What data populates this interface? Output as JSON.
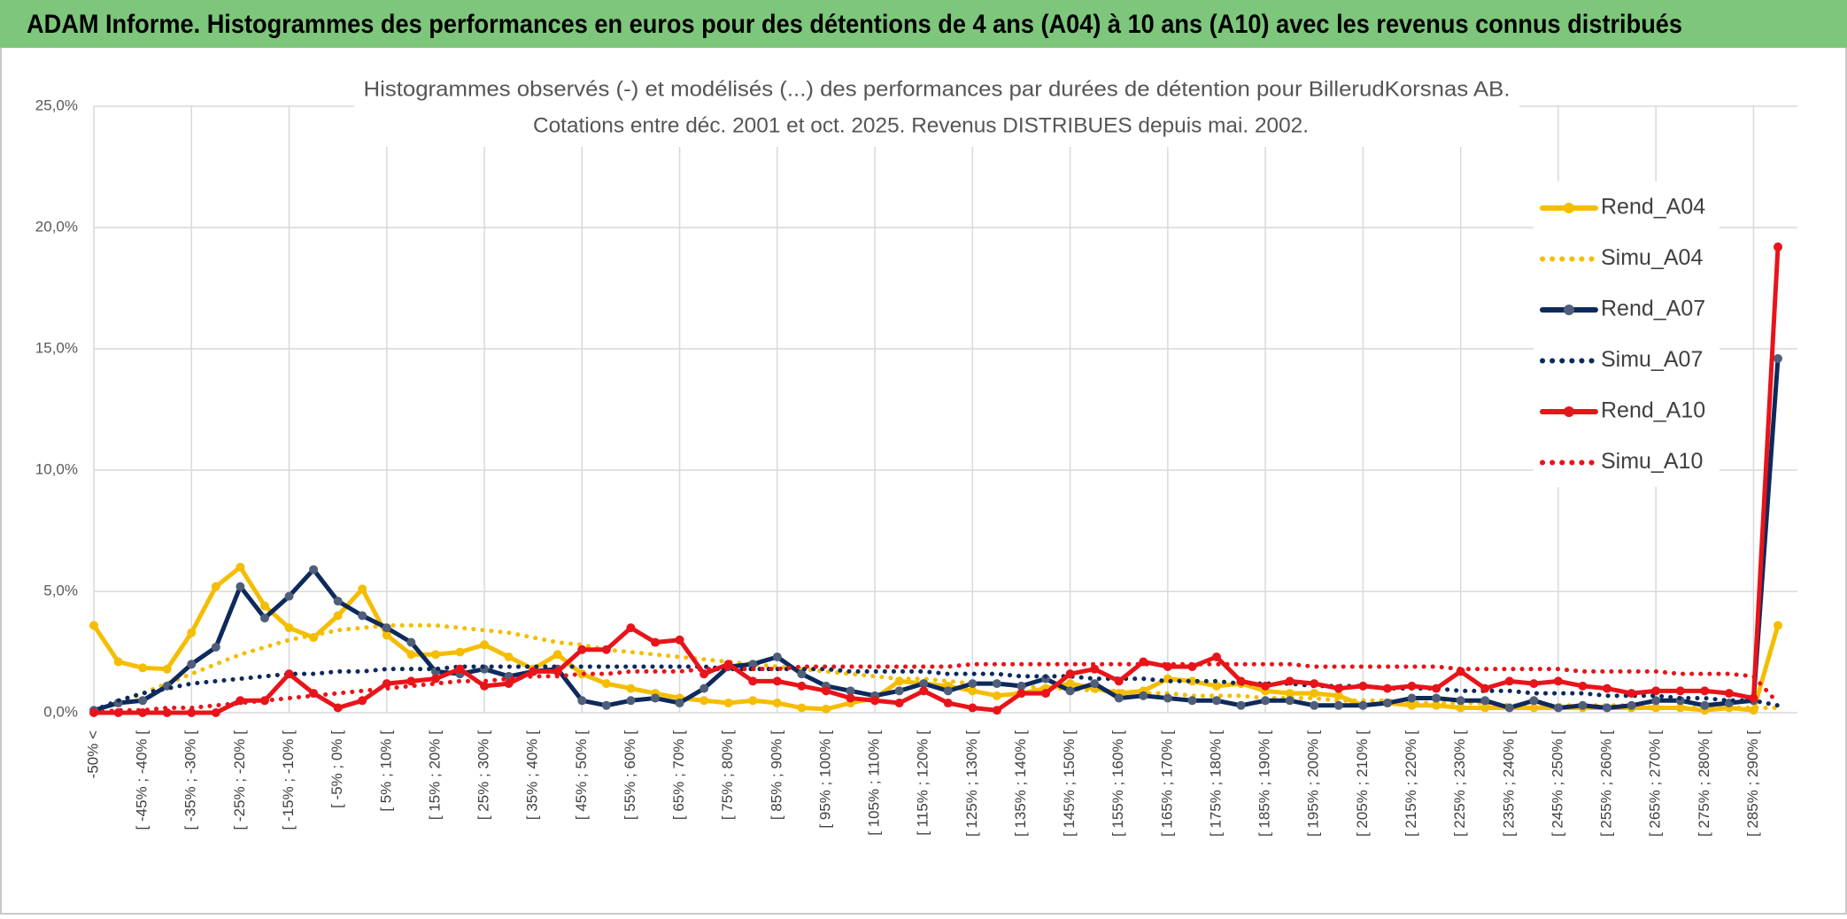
{
  "header": {
    "title": "ADAM Informe. Histogrammes des performances en euros pour des détentions de 4 ans (A04) à 10 ans (A10) avec les revenus connus distribués"
  },
  "chart_data": {
    "type": "line",
    "title": "Histogrammes observés (-) et modélisés (...) des performances par durées de détention pour BillerudKorsnas AB.",
    "subtitle": "Cotations entre déc. 2001 et oct. 2025. Revenus DISTRIBUES depuis mai. 2002.",
    "categories": [
      "-50% <",
      null,
      "[ -45% ; -40% [",
      null,
      "[ -35% ; -30% [",
      null,
      "[ -25% ; -20% [",
      null,
      "[ -15% ; -10% [",
      null,
      "[ -5% ; 0% [",
      null,
      "[ 5% ; 10% [",
      null,
      "[ 15% ; 20% [",
      null,
      "[ 25% ; 30% [",
      null,
      "[ 35% ; 40% [",
      null,
      "[ 45% ; 50% [",
      null,
      "[ 55% ; 60% [",
      null,
      "[ 65% ; 70% [",
      null,
      "[ 75% ; 80% [",
      null,
      "[ 85% ; 90% [",
      null,
      "[ 95% ; 100% [",
      null,
      "[ 105% ; 110% [",
      null,
      "[ 115% ; 120% [",
      null,
      "[ 125% ; 130% [",
      null,
      "[ 135% ; 140% [",
      null,
      "[ 145% ; 150% [",
      null,
      "[ 155% ; 160% [",
      null,
      "[ 165% ; 170% [",
      null,
      "[ 175% ; 180% [",
      null,
      "[ 185% ; 190% [",
      null,
      "[ 195% ; 200% [",
      null,
      "[ 205% ; 210% [",
      null,
      "[ 215% ; 220% [",
      null,
      "[ 225% ; 230% [",
      null,
      "[ 235% ; 240% [",
      null,
      "[ 245% ; 250% [",
      null,
      "[ 255% ; 260% [",
      null,
      "[ 265% ; 270% [",
      null,
      "[ 275% ; 280% [",
      null,
      "[ 285% ; 290% [",
      null
    ],
    "series": [
      {
        "name": "Rend_A04",
        "color": "#f5bd00",
        "style": "solid",
        "marker_color": "#f5bd00",
        "values": [
          3.6,
          2.1,
          1.85,
          1.8,
          3.3,
          5.2,
          6.0,
          4.4,
          3.5,
          3.1,
          4.0,
          5.1,
          3.2,
          2.4,
          2.4,
          2.5,
          2.8,
          2.3,
          1.8,
          2.4,
          1.6,
          1.2,
          1.0,
          0.8,
          0.6,
          0.5,
          0.4,
          0.5,
          0.4,
          0.2,
          0.15,
          0.4,
          0.6,
          1.3,
          1.2,
          1.1,
          0.9,
          0.7,
          0.8,
          1.0,
          1.2,
          1.0,
          0.8,
          0.9,
          1.4,
          1.3,
          1.1,
          1.2,
          0.9,
          0.8,
          0.8,
          0.7,
          0.3,
          0.4,
          0.3,
          0.3,
          0.2,
          0.2,
          0.2,
          0.2,
          0.2,
          0.2,
          0.2,
          0.2,
          0.2,
          0.2,
          0.1,
          0.2,
          0.1,
          3.6
        ]
      },
      {
        "name": "Simu_A04",
        "color": "#f5bd00",
        "style": "dotted",
        "values": [
          0.1,
          0.4,
          0.8,
          1.2,
          1.6,
          2.0,
          2.4,
          2.7,
          3.0,
          3.2,
          3.4,
          3.5,
          3.6,
          3.6,
          3.6,
          3.5,
          3.4,
          3.3,
          3.1,
          2.9,
          2.8,
          2.6,
          2.5,
          2.4,
          2.3,
          2.2,
          2.1,
          2.0,
          1.9,
          1.8,
          1.7,
          1.6,
          1.5,
          1.4,
          1.4,
          1.3,
          1.2,
          1.2,
          1.1,
          1.0,
          1.0,
          0.9,
          0.9,
          0.8,
          0.8,
          0.7,
          0.7,
          0.7,
          0.6,
          0.6,
          0.6,
          0.5,
          0.5,
          0.5,
          0.4,
          0.4,
          0.4,
          0.4,
          0.3,
          0.3,
          0.3,
          0.3,
          0.3,
          0.3,
          0.2,
          0.2,
          0.2,
          0.2,
          0.2,
          0.2
        ]
      },
      {
        "name": "Rend_A07",
        "color": "#0d2a5c",
        "style": "solid",
        "marker_color": "#4f5f7a",
        "values": [
          0.1,
          0.4,
          0.5,
          1.1,
          2.0,
          2.7,
          5.2,
          3.9,
          4.8,
          5.9,
          4.6,
          4.0,
          3.5,
          2.9,
          1.7,
          1.6,
          1.8,
          1.5,
          1.7,
          1.8,
          0.5,
          0.3,
          0.5,
          0.6,
          0.4,
          1.0,
          1.9,
          2.0,
          2.3,
          1.6,
          1.1,
          0.9,
          0.7,
          0.9,
          1.2,
          0.9,
          1.2,
          1.2,
          1.1,
          1.4,
          0.9,
          1.2,
          0.6,
          0.7,
          0.6,
          0.5,
          0.5,
          0.3,
          0.5,
          0.5,
          0.3,
          0.3,
          0.3,
          0.4,
          0.6,
          0.6,
          0.5,
          0.5,
          0.2,
          0.5,
          0.2,
          0.3,
          0.2,
          0.3,
          0.5,
          0.5,
          0.3,
          0.4,
          0.5,
          14.6
        ]
      },
      {
        "name": "Simu_A07",
        "color": "#0d2a5c",
        "style": "dotted",
        "values": [
          0.1,
          0.5,
          0.8,
          1.0,
          1.2,
          1.3,
          1.4,
          1.5,
          1.6,
          1.6,
          1.7,
          1.7,
          1.8,
          1.8,
          1.8,
          1.9,
          1.9,
          1.9,
          1.9,
          1.9,
          1.9,
          1.9,
          1.9,
          1.9,
          1.9,
          1.9,
          1.8,
          1.8,
          1.8,
          1.8,
          1.8,
          1.7,
          1.7,
          1.7,
          1.7,
          1.6,
          1.6,
          1.6,
          1.5,
          1.5,
          1.5,
          1.4,
          1.4,
          1.4,
          1.3,
          1.3,
          1.3,
          1.2,
          1.2,
          1.2,
          1.1,
          1.1,
          1.1,
          1.0,
          1.0,
          1.0,
          0.9,
          0.9,
          0.9,
          0.8,
          0.8,
          0.8,
          0.7,
          0.7,
          0.7,
          0.6,
          0.6,
          0.5,
          0.5,
          0.3
        ]
      },
      {
        "name": "Rend_A10",
        "color": "#e8141a",
        "style": "solid",
        "marker_color": "#e8141a",
        "values": [
          0,
          0,
          0,
          0,
          0,
          0,
          0.5,
          0.5,
          1.6,
          0.8,
          0.2,
          0.5,
          1.2,
          1.3,
          1.4,
          1.8,
          1.1,
          1.2,
          1.7,
          1.7,
          2.6,
          2.6,
          3.5,
          2.9,
          3.0,
          1.6,
          2.0,
          1.3,
          1.3,
          1.1,
          0.9,
          0.6,
          0.5,
          0.4,
          0.9,
          0.4,
          0.2,
          0.1,
          0.8,
          0.8,
          1.6,
          1.8,
          1.3,
          2.1,
          1.9,
          1.9,
          2.3,
          1.3,
          1.1,
          1.3,
          1.2,
          1.0,
          1.1,
          1.0,
          1.1,
          1.0,
          1.7,
          1.0,
          1.3,
          1.2,
          1.3,
          1.1,
          1.0,
          0.8,
          0.9,
          0.9,
          0.9,
          0.8,
          0.6,
          19.2
        ]
      },
      {
        "name": "Simu_A10",
        "color": "#e8141a",
        "style": "dotted",
        "values": [
          0.0,
          0.1,
          0.1,
          0.2,
          0.2,
          0.3,
          0.4,
          0.5,
          0.6,
          0.7,
          0.8,
          0.9,
          1.0,
          1.1,
          1.2,
          1.3,
          1.3,
          1.4,
          1.5,
          1.5,
          1.6,
          1.6,
          1.7,
          1.7,
          1.7,
          1.8,
          1.8,
          1.8,
          1.8,
          1.9,
          1.9,
          1.9,
          1.9,
          1.9,
          1.9,
          1.9,
          2.0,
          2.0,
          2.0,
          2.0,
          2.0,
          2.0,
          2.0,
          2.0,
          2.0,
          2.0,
          2.0,
          2.0,
          2.0,
          2.0,
          1.9,
          1.9,
          1.9,
          1.9,
          1.9,
          1.9,
          1.8,
          1.8,
          1.8,
          1.8,
          1.8,
          1.7,
          1.7,
          1.7,
          1.7,
          1.6,
          1.6,
          1.6,
          1.5,
          0.4
        ]
      }
    ],
    "ylim": [
      0,
      25
    ],
    "yticks": [
      {
        "value": 0,
        "label": "0,0%"
      },
      {
        "value": 5,
        "label": "5,0%"
      },
      {
        "value": 10,
        "label": "10,0%"
      },
      {
        "value": 15,
        "label": "15,0%"
      },
      {
        "value": 20,
        "label": "20,0%"
      },
      {
        "value": 25,
        "label": "25,0%"
      }
    ],
    "grid": true,
    "legend": "right"
  }
}
